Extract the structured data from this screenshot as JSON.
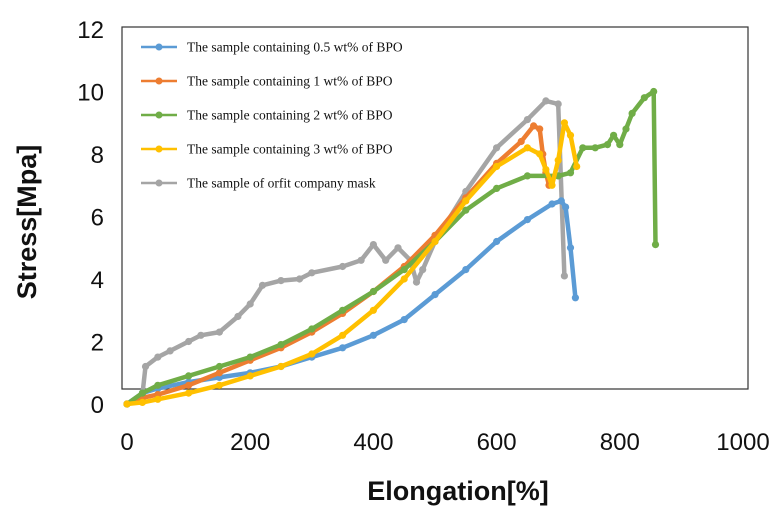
{
  "chart_data": {
    "type": "line",
    "title": "",
    "xlabel": "Elongation[%]",
    "ylabel": "Stress[Mpa]",
    "xlim": [
      0,
      1000
    ],
    "ylim": [
      0,
      12
    ],
    "xticks": [
      "0",
      "200",
      "400",
      "600",
      "800",
      "1000"
    ],
    "yticks": [
      "0",
      "2",
      "4",
      "6",
      "8",
      "10",
      "12"
    ],
    "grid": false,
    "legend_position": "top-left",
    "series": [
      {
        "name": "The sample containing 0.5 wt% of BPO",
        "color": "#5b9bd5",
        "x": [
          0,
          25,
          50,
          100,
          150,
          200,
          250,
          300,
          350,
          400,
          450,
          500,
          550,
          600,
          650,
          690,
          705,
          712,
          720,
          728
        ],
        "y": [
          0,
          0.35,
          0.5,
          0.7,
          0.85,
          1.0,
          1.2,
          1.5,
          1.8,
          2.2,
          2.7,
          3.5,
          4.3,
          5.2,
          5.9,
          6.4,
          6.5,
          6.3,
          5.0,
          3.4
        ]
      },
      {
        "name": "The sample containing 1 wt% of BPO",
        "color": "#ed7d31",
        "x": [
          0,
          25,
          50,
          100,
          150,
          200,
          250,
          300,
          350,
          400,
          450,
          500,
          550,
          600,
          640,
          660,
          670,
          675,
          680,
          685
        ],
        "y": [
          0,
          0.2,
          0.3,
          0.6,
          1.0,
          1.4,
          1.8,
          2.3,
          2.9,
          3.6,
          4.4,
          5.4,
          6.6,
          7.7,
          8.4,
          8.9,
          8.8,
          8.0,
          7.4,
          7.0
        ]
      },
      {
        "name": "The sample containing 2 wt% of BPO",
        "color": "#70ad47",
        "x": [
          0,
          25,
          50,
          100,
          150,
          200,
          250,
          300,
          350,
          400,
          450,
          500,
          550,
          600,
          650,
          700,
          720,
          740,
          760,
          780,
          790,
          800,
          810,
          820,
          840,
          855,
          858
        ],
        "y": [
          0,
          0.35,
          0.6,
          0.9,
          1.2,
          1.5,
          1.9,
          2.4,
          3.0,
          3.6,
          4.3,
          5.2,
          6.2,
          6.9,
          7.3,
          7.3,
          7.4,
          8.2,
          8.2,
          8.3,
          8.6,
          8.3,
          8.8,
          9.3,
          9.8,
          10.0,
          5.1
        ]
      },
      {
        "name": "The sample containing 3 wt% of BPO",
        "color": "#ffc000",
        "x": [
          0,
          25,
          50,
          100,
          150,
          200,
          250,
          300,
          350,
          400,
          450,
          500,
          550,
          600,
          650,
          670,
          680,
          690,
          700,
          710,
          720,
          730
        ],
        "y": [
          0,
          0.05,
          0.15,
          0.35,
          0.6,
          0.9,
          1.2,
          1.6,
          2.2,
          3.0,
          4.0,
          5.2,
          6.5,
          7.6,
          8.2,
          8.0,
          7.5,
          7.0,
          7.8,
          9.0,
          8.6,
          7.6
        ]
      },
      {
        "name": "The sample of orfit company mask",
        "color": "#a5a5a5",
        "x": [
          0,
          25,
          30,
          50,
          70,
          100,
          120,
          150,
          180,
          200,
          220,
          250,
          280,
          300,
          350,
          380,
          400,
          420,
          440,
          460,
          470,
          480,
          500,
          550,
          600,
          650,
          680,
          700,
          710
        ],
        "y": [
          0,
          0.3,
          1.2,
          1.5,
          1.7,
          2.0,
          2.2,
          2.3,
          2.8,
          3.2,
          3.8,
          3.95,
          4.0,
          4.2,
          4.4,
          4.6,
          5.1,
          4.6,
          5.0,
          4.6,
          3.9,
          4.3,
          5.2,
          6.8,
          8.2,
          9.1,
          9.7,
          9.6,
          4.1
        ]
      }
    ]
  }
}
